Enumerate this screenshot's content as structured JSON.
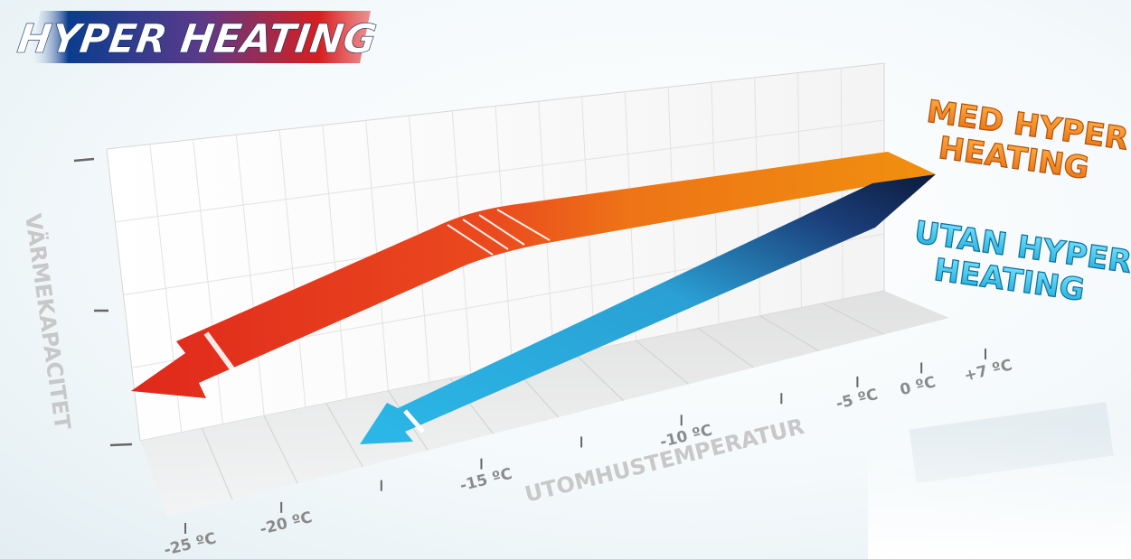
{
  "logo": {
    "text": "HYPER HEATING",
    "colors": [
      "#0a3d8f",
      "#d81e1e"
    ]
  },
  "chart_data": {
    "type": "line",
    "ylabel": "VÄRMEKAPACITET",
    "xlabel": "UTOMHUSTEMPERATUR",
    "x_ticks": [
      "-25 ºC",
      "-20 ºC",
      "-15 ºC",
      "-10 ºC",
      "-5 ºC",
      "0 ºC",
      "+7 ºC"
    ],
    "grid": true,
    "series": [
      {
        "name": "MED HYPER HEATING",
        "name_lines": [
          "MED HYPER",
          "HEATING"
        ],
        "color": "#f07d10"
      },
      {
        "name": "UTAN HYPER HEATING",
        "name_lines": [
          "UTAN HYPER",
          "HEATING"
        ],
        "color": "#2ab6e6"
      }
    ]
  }
}
